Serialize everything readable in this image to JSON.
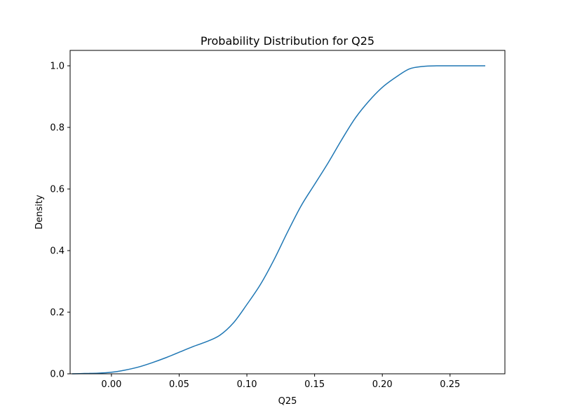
{
  "chart_data": {
    "type": "line",
    "title": "Probability Distribution for Q25",
    "xlabel": "Q25",
    "ylabel": "Density",
    "xlim": [
      -0.0305,
      0.2905
    ],
    "ylim": [
      0,
      1.05
    ],
    "xticks": [
      0.0,
      0.05,
      0.1,
      0.15,
      0.2,
      0.25
    ],
    "xtick_labels": [
      "0.00",
      "0.05",
      "0.10",
      "0.15",
      "0.20",
      "0.25"
    ],
    "yticks": [
      0.0,
      0.2,
      0.4,
      0.6,
      0.8,
      1.0
    ],
    "ytick_labels": [
      "0.0",
      "0.2",
      "0.4",
      "0.6",
      "0.8",
      "1.0"
    ],
    "grid": false,
    "series": [
      {
        "color": "#1f77b4",
        "x": [
          -0.029,
          -0.02,
          -0.01,
          0.0,
          0.01,
          0.02,
          0.03,
          0.04,
          0.05,
          0.06,
          0.07,
          0.08,
          0.09,
          0.1,
          0.11,
          0.12,
          0.13,
          0.14,
          0.15,
          0.16,
          0.17,
          0.18,
          0.19,
          0.2,
          0.21,
          0.22,
          0.23,
          0.24,
          0.25,
          0.26,
          0.276
        ],
        "y": [
          0.0,
          0.001,
          0.002,
          0.005,
          0.012,
          0.022,
          0.036,
          0.052,
          0.07,
          0.088,
          0.104,
          0.125,
          0.165,
          0.225,
          0.29,
          0.37,
          0.46,
          0.545,
          0.615,
          0.685,
          0.76,
          0.83,
          0.885,
          0.93,
          0.963,
          0.99,
          0.998,
          1.0,
          1.0,
          1.0,
          1.0
        ]
      }
    ]
  }
}
